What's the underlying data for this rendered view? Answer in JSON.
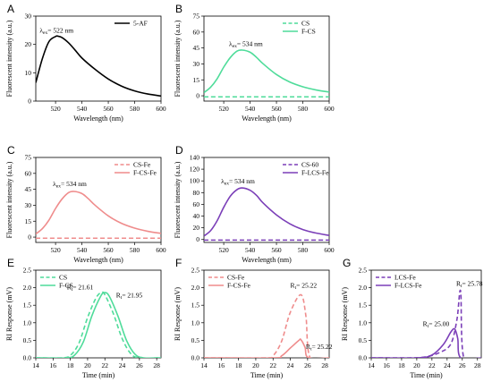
{
  "chart_data": [
    {
      "id": "A",
      "type": "line",
      "panel_label": "A",
      "xlabel": "Wavelength (nm)",
      "ylabel": "Fluorescent intensity (a.u.)",
      "xlim": [
        505,
        600
      ],
      "ylim": [
        0,
        30
      ],
      "xticks": [
        520,
        540,
        560,
        580,
        600
      ],
      "yticks": [
        0,
        10,
        20,
        30
      ],
      "legend_position": "top-right",
      "series": [
        {
          "name": "5-AF",
          "color": "#000000",
          "style": "solid",
          "x": [
            505,
            510,
            515,
            520,
            522,
            525,
            530,
            535,
            540,
            550,
            560,
            570,
            580,
            590,
            600
          ],
          "y": [
            6.5,
            15.0,
            21.0,
            22.8,
            22.9,
            22.4,
            20.5,
            17.9,
            15.2,
            11.2,
            7.8,
            5.3,
            3.6,
            2.5,
            1.8
          ]
        }
      ],
      "annotations": [
        {
          "text": "λex= 522 nm",
          "x": 508,
          "y": 24.2
        }
      ]
    },
    {
      "id": "B",
      "type": "line",
      "panel_label": "B",
      "xlabel": "Wavelength (nm)",
      "ylabel": "Fluorescent intensity (a.u.)",
      "xlim": [
        505,
        600
      ],
      "ylim": [
        -5,
        75
      ],
      "xticks": [
        520,
        540,
        560,
        580,
        600
      ],
      "yticks": [
        0,
        15,
        30,
        45,
        60,
        75
      ],
      "legend_position": "top-right",
      "series": [
        {
          "name": "CS",
          "color": "#4fdc9a",
          "style": "dashed",
          "x": [
            505,
            600
          ],
          "y": [
            -1,
            -1
          ]
        },
        {
          "name": "F-CS",
          "color": "#4fdc9a",
          "style": "solid",
          "x": [
            505,
            510,
            515,
            520,
            525,
            530,
            534,
            540,
            545,
            550,
            560,
            570,
            580,
            590,
            600
          ],
          "y": [
            3,
            8,
            16,
            27,
            36,
            42,
            43,
            41,
            36,
            30,
            20,
            13,
            8.5,
            5.5,
            3.5
          ]
        }
      ],
      "annotations": [
        {
          "text": "λex= 534 nm",
          "x": 524,
          "y": 47
        }
      ]
    },
    {
      "id": "C",
      "type": "line",
      "panel_label": "C",
      "xlabel": "Wavelength (nm)",
      "ylabel": "Fluorescent intensity (a.u.)",
      "xlim": [
        505,
        600
      ],
      "ylim": [
        -5,
        75
      ],
      "xticks": [
        520,
        540,
        560,
        580,
        600
      ],
      "yticks": [
        0,
        15,
        30,
        45,
        60,
        75
      ],
      "legend_position": "top-right",
      "series": [
        {
          "name": "CS-Fe",
          "color": "#ef8c8c",
          "style": "dashed",
          "x": [
            505,
            600
          ],
          "y": [
            -1,
            -1
          ]
        },
        {
          "name": "F-CS-Fe",
          "color": "#ef8c8c",
          "style": "solid",
          "x": [
            505,
            510,
            515,
            520,
            525,
            530,
            534,
            540,
            545,
            550,
            560,
            570,
            580,
            590,
            600
          ],
          "y": [
            3,
            8,
            16,
            27,
            36,
            42,
            43,
            41,
            36,
            30,
            20,
            13,
            8.5,
            5.5,
            3.5
          ]
        }
      ],
      "annotations": [
        {
          "text": "λex= 534 nm",
          "x": 518,
          "y": 48
        }
      ]
    },
    {
      "id": "D",
      "type": "line",
      "panel_label": "D",
      "xlabel": "Wavelength (nm)",
      "ylabel": "Fluorescent intensity (a.u.)",
      "xlim": [
        505,
        600
      ],
      "ylim": [
        -5,
        140
      ],
      "xticks": [
        520,
        540,
        560,
        580,
        600
      ],
      "yticks": [
        0,
        20,
        40,
        60,
        80,
        100,
        120,
        140
      ],
      "legend_position": "top-right",
      "series": [
        {
          "name": "CS-60",
          "color": "#7b3fb8",
          "style": "dashed",
          "x": [
            505,
            600
          ],
          "y": [
            -1,
            -1
          ]
        },
        {
          "name": "F-LCS-Fe",
          "color": "#7b3fb8",
          "style": "solid",
          "x": [
            505,
            510,
            515,
            520,
            525,
            530,
            534,
            540,
            545,
            550,
            560,
            570,
            580,
            590,
            600
          ],
          "y": [
            6,
            15,
            32,
            55,
            74,
            85,
            88,
            84,
            75,
            62,
            42,
            27,
            17,
            11,
            7
          ]
        }
      ],
      "annotations": [
        {
          "text": "λex= 534 nm",
          "x": 518,
          "y": 96
        }
      ]
    },
    {
      "id": "E",
      "type": "line",
      "panel_label": "E",
      "xlabel": "Time (min)",
      "ylabel": "RI Response (mV)",
      "xlim": [
        14,
        28.5
      ],
      "ylim": [
        0,
        2.5
      ],
      "xticks": [
        14,
        16,
        18,
        20,
        22,
        24,
        26,
        28
      ],
      "yticks": [
        0.0,
        0.5,
        1.0,
        1.5,
        2.0,
        2.5
      ],
      "legend_position": "top-left",
      "series": [
        {
          "name": "CS",
          "color": "#4fdc9a",
          "style": "dashed",
          "x": [
            14,
            17,
            18,
            19,
            20,
            21,
            21.61,
            22,
            23,
            24,
            25,
            26,
            28.5
          ],
          "y": [
            0,
            0,
            0.07,
            0.42,
            1.15,
            1.72,
            1.86,
            1.8,
            1.25,
            0.55,
            0.12,
            0,
            0
          ]
        },
        {
          "name": "F-CS",
          "color": "#4fdc9a",
          "style": "solid",
          "x": [
            14,
            17.5,
            18.5,
            19.5,
            20.5,
            21.5,
            21.95,
            22.5,
            23.5,
            24.5,
            25.5,
            26.5,
            28.5
          ],
          "y": [
            0,
            0,
            0.08,
            0.45,
            1.2,
            1.75,
            1.86,
            1.76,
            1.2,
            0.5,
            0.1,
            0,
            0
          ]
        }
      ],
      "annotations": [
        {
          "text": "Rt= 21.61",
          "x": 17.6,
          "y": 1.95
        },
        {
          "text": "Rt= 21.95",
          "x": 23.3,
          "y": 1.72
        }
      ]
    },
    {
      "id": "F",
      "type": "line",
      "panel_label": "F",
      "xlabel": "Time (min)",
      "ylabel": "RI Response (mV)",
      "xlim": [
        14,
        28.5
      ],
      "ylim": [
        0,
        2.5
      ],
      "xticks": [
        14,
        16,
        18,
        20,
        22,
        24,
        26,
        28
      ],
      "yticks": [
        0.0,
        0.5,
        1.0,
        1.5,
        2.0,
        2.5
      ],
      "legend_position": "top-left",
      "series": [
        {
          "name": "CS-Fe",
          "color": "#ef8c8c",
          "style": "dashed",
          "x": [
            14,
            21,
            22,
            23,
            24,
            25.22,
            25.8,
            26.3,
            28.5
          ],
          "y": [
            0,
            0,
            0.06,
            0.48,
            1.3,
            1.8,
            1.2,
            0,
            0
          ]
        },
        {
          "name": "F-CS-Fe",
          "color": "#ef8c8c",
          "style": "solid",
          "x": [
            14,
            22,
            23,
            24,
            25,
            25.22,
            25.7,
            26.1,
            28.5
          ],
          "y": [
            0,
            0,
            0.06,
            0.28,
            0.5,
            0.52,
            0.3,
            0,
            0
          ]
        }
      ],
      "annotations": [
        {
          "text": "Rt= 25.22",
          "x": 24,
          "y": 2.0
        },
        {
          "text": "Rt= 25.22",
          "x": 25.8,
          "y": 0.25
        }
      ]
    },
    {
      "id": "G",
      "type": "line",
      "panel_label": "G",
      "xlabel": "Time (min)",
      "ylabel": "RI Response (mV)",
      "xlim": [
        14,
        28.5
      ],
      "ylim": [
        0,
        2.5
      ],
      "xticks": [
        14,
        16,
        18,
        20,
        22,
        24,
        26,
        28
      ],
      "yticks": [
        0.0,
        0.5,
        1.0,
        1.5,
        2.0,
        2.5
      ],
      "legend_position": "top-left",
      "series": [
        {
          "name": "LCS-Fe",
          "color": "#7b3fb8",
          "style": "dashed",
          "x": [
            14,
            19,
            21,
            23,
            24.5,
            25.3,
            25.78,
            26.2,
            28.5
          ],
          "y": [
            0,
            0,
            0.02,
            0.15,
            0.4,
            1.1,
            1.9,
            0,
            0
          ]
        },
        {
          "name": "F-LCS-Fe",
          "color": "#7b3fb8",
          "style": "solid",
          "x": [
            14,
            20,
            22,
            23.5,
            24.5,
            25.0,
            25.4,
            25.8,
            28.5
          ],
          "y": [
            0,
            0,
            0.08,
            0.38,
            0.74,
            0.82,
            0.55,
            0,
            0
          ]
        }
      ],
      "annotations": [
        {
          "text": "Rt= 25.78",
          "x": 25.2,
          "y": 2.05
        },
        {
          "text": "Rt= 25.00",
          "x": 20.8,
          "y": 0.9
        }
      ]
    }
  ]
}
